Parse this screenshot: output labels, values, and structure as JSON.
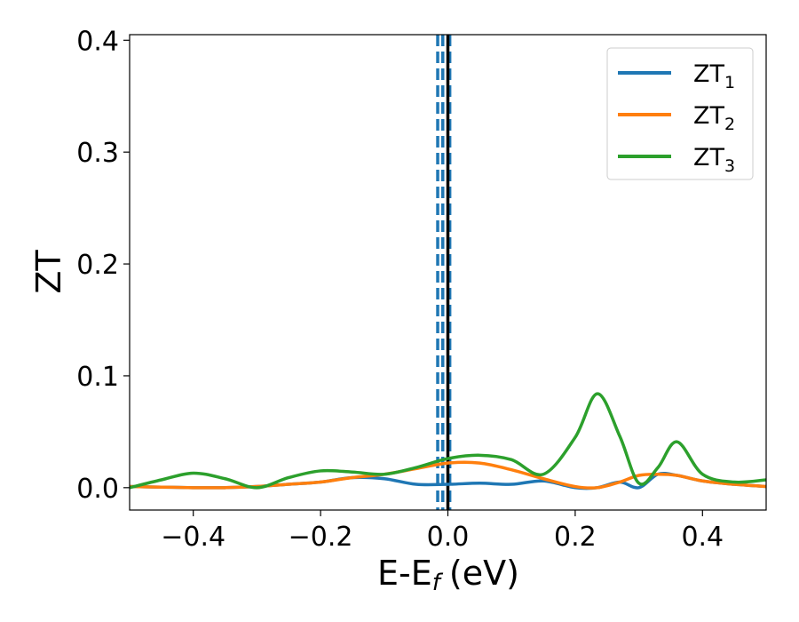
{
  "chart_data": {
    "type": "line",
    "xlabel": "E-E",
    "xlabel_sub": "f",
    "xlabel_unit": "(eV)",
    "ylabel": "ZT",
    "xlim": [
      -0.5,
      0.5
    ],
    "ylim": [
      -0.02,
      0.405
    ],
    "x_ticks": [
      -0.4,
      -0.2,
      0.0,
      0.2,
      0.4
    ],
    "x_tick_labels": [
      "−0.4",
      "−0.2",
      "0.0",
      "0.2",
      "0.4"
    ],
    "y_ticks": [
      0.0,
      0.1,
      0.2,
      0.3,
      0.4
    ],
    "y_tick_labels": [
      "0.0",
      "0.1",
      "0.2",
      "0.3",
      "0.4"
    ],
    "grid": false,
    "legend_position": "top-right",
    "vertical_lines": [
      {
        "x": -0.016,
        "style": "dashed",
        "color": "#1f77b4"
      },
      {
        "x": -0.008,
        "style": "dashed",
        "color": "#1f77b4"
      },
      {
        "x": 0.003,
        "style": "dashed",
        "color": "#1f77b4"
      },
      {
        "x": 0.0,
        "style": "solid",
        "color": "#000000"
      }
    ],
    "x": [
      -0.5,
      -0.45,
      -0.4,
      -0.35,
      -0.3,
      -0.25,
      -0.2,
      -0.15,
      -0.1,
      -0.05,
      0.0,
      0.05,
      0.1,
      0.15,
      0.2,
      0.235,
      0.27,
      0.3,
      0.33,
      0.36,
      0.4,
      0.45,
      0.5
    ],
    "series": [
      {
        "name": "ZT",
        "sub": "1",
        "color": "#1f77b4",
        "values": [
          0.001,
          0.0005,
          0.0,
          0.0,
          0.001,
          0.003,
          0.005,
          0.009,
          0.008,
          0.003,
          0.003,
          0.004,
          0.003,
          0.006,
          0.0,
          0.0,
          0.005,
          0.0,
          0.012,
          0.011,
          0.006,
          0.003,
          0.001
        ]
      },
      {
        "name": "ZT",
        "sub": "2",
        "color": "#ff7f0e",
        "values": [
          0.001,
          0.0005,
          0.0,
          0.0,
          0.001,
          0.003,
          0.005,
          0.009,
          0.012,
          0.017,
          0.022,
          0.022,
          0.016,
          0.008,
          0.001,
          0.0,
          0.005,
          0.011,
          0.012,
          0.011,
          0.006,
          0.003,
          0.001
        ]
      },
      {
        "name": "ZT",
        "sub": "3",
        "color": "#2ca02c",
        "values": [
          0.0,
          0.007,
          0.013,
          0.008,
          0.0,
          0.009,
          0.015,
          0.014,
          0.012,
          0.018,
          0.026,
          0.029,
          0.025,
          0.012,
          0.045,
          0.084,
          0.046,
          0.004,
          0.018,
          0.041,
          0.012,
          0.005,
          0.007
        ]
      }
    ]
  }
}
